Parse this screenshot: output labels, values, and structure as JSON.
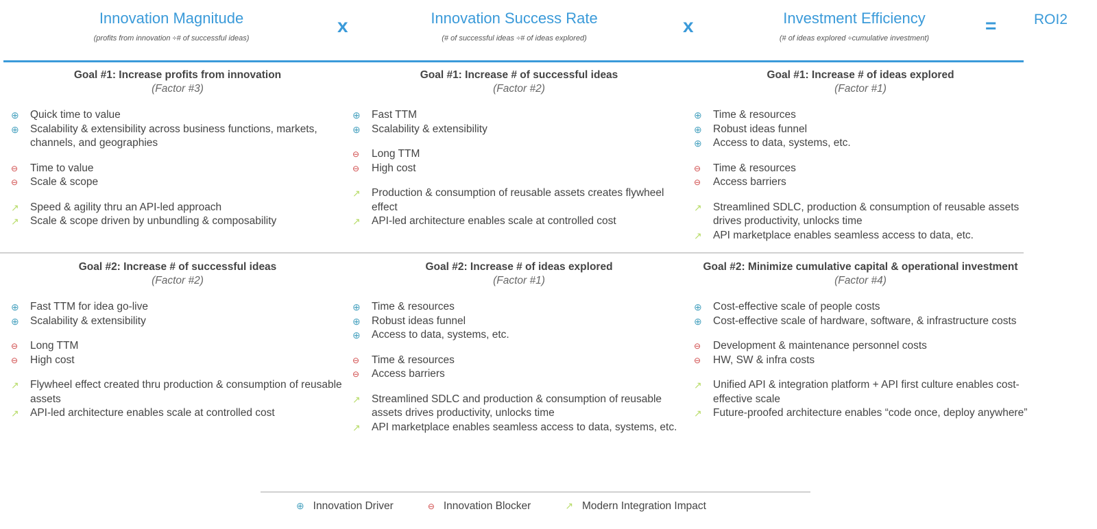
{
  "header": {
    "factors": [
      {
        "title": "Innovation Magnitude",
        "formula": "(profits from innovation ÷# of successful ideas)"
      },
      {
        "title": "Innovation Success Rate",
        "formula": "(# of successful ideas ÷# of ideas explored)"
      },
      {
        "title": "Investment Efficiency",
        "formula": "(# of ideas explored ÷cumulative investment)"
      }
    ],
    "multiply": "x",
    "equals": "=",
    "result": "ROI2"
  },
  "colors": {
    "accent": "#3a9ad9",
    "driver": "#4aa3c0",
    "blocker": "#d04848",
    "impact": "#b8dc6a"
  },
  "cells": [
    {
      "goal": "Goal #1: Increase profits from innovation",
      "factor": "(Factor #3)",
      "drivers": [
        "Quick time to value",
        "Scalability & extensibility across business functions, markets, channels, and geographies"
      ],
      "blockers": [
        "Time to value",
        "Scale & scope"
      ],
      "impacts": [
        "Speed & agility thru an API-led approach",
        "Scale & scope driven by unbundling & composability"
      ]
    },
    {
      "goal": "Goal #1: Increase # of successful ideas",
      "factor": "(Factor #2)",
      "drivers": [
        "Fast TTM",
        "Scalability & extensibility"
      ],
      "blockers": [
        "Long TTM",
        "High cost"
      ],
      "impacts": [
        "Production & consumption of reusable assets creates flywheel effect",
        "API-led architecture enables scale at controlled cost"
      ]
    },
    {
      "goal": "Goal #1: Increase # of ideas explored",
      "factor": "(Factor #1)",
      "drivers": [
        "Time & resources",
        "Robust ideas funnel",
        "Access to data, systems, etc."
      ],
      "blockers": [
        "Time & resources",
        "Access barriers"
      ],
      "impacts": [
        "Streamlined SDLC, production & consumption of reusable assets drives productivity, unlocks time",
        "API marketplace enables seamless access to data, etc."
      ]
    },
    {
      "goal": "Goal #2: Increase # of successful ideas",
      "factor": "(Factor #2)",
      "drivers": [
        "Fast TTM for idea go-live",
        "Scalability & extensibility"
      ],
      "blockers": [
        "Long TTM",
        "High cost"
      ],
      "impacts": [
        "Flywheel effect created thru production & consumption of reusable assets",
        "API-led architecture enables scale at controlled cost"
      ]
    },
    {
      "goal": "Goal #2: Increase # of ideas explored",
      "factor": "(Factor #1)",
      "drivers": [
        "Time & resources",
        "Robust ideas funnel",
        "Access to data, systems, etc."
      ],
      "blockers": [
        "Time & resources",
        "Access barriers"
      ],
      "impacts": [
        "Streamlined SDLC and production & consumption of reusable assets drives productivity, unlocks time",
        "API marketplace enables seamless access to data, systems, etc."
      ]
    },
    {
      "goal": "Goal #2: Minimize cumulative capital & operational investment",
      "factor": "(Factor #4)",
      "drivers": [
        "Cost-effective scale of people costs",
        "Cost-effective scale of hardware, software, & infrastructure costs"
      ],
      "blockers": [
        "Development & maintenance personnel costs",
        "HW, SW & infra costs"
      ],
      "impacts": [
        "Unified API & integration platform + API first culture enables cost-effective scale",
        "Future-proofed architecture enables “code once, deploy anywhere”"
      ]
    }
  ],
  "legend": [
    {
      "icon": "plus-circle-icon",
      "label": "Innovation Driver"
    },
    {
      "icon": "minus-circle-icon",
      "label": "Innovation Blocker"
    },
    {
      "icon": "arrow-up-right-icon",
      "label": "Modern Integration Impact"
    }
  ]
}
